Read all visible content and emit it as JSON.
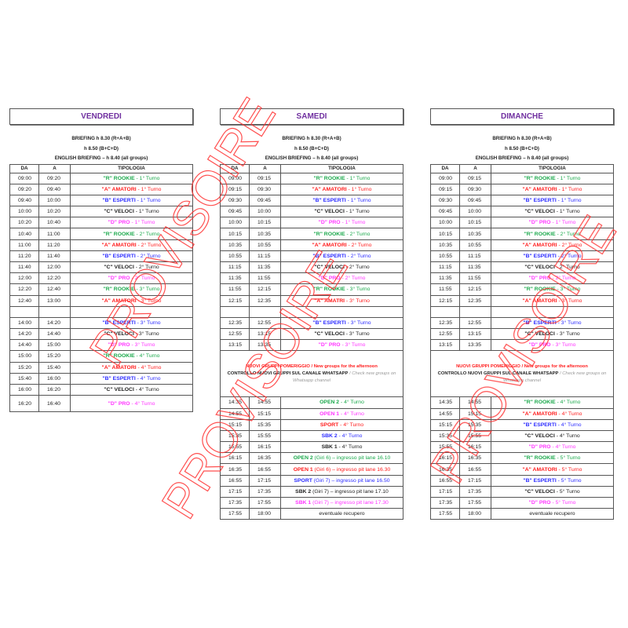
{
  "colors": {
    "g": "#19a84a",
    "r": "#ff1a1a",
    "b": "#2a2aff",
    "k": "#222222",
    "m": "#ff33ff",
    "title": "#7030a0",
    "watermark": "#ff3030"
  },
  "watermark": "PROVISOIRE",
  "headers": {
    "da": "DA",
    "a": "A",
    "tipologia": "TIPOLOGIA"
  },
  "days": [
    {
      "title": "VENDREDI",
      "briefing": [
        "BRIEFING h 8.30 (R+A+B)",
        "h 8.50 (B+C+D)",
        "ENGLISH BRIEFING – h 8.40 (all groups)"
      ],
      "rows": [
        [
          "09:00",
          "09:20",
          "\"R\" ROOKIE",
          " - 1° Turno",
          "g"
        ],
        [
          "09:20",
          "09:40",
          "\"A\" AMATORI",
          " - 1° Turno",
          "r"
        ],
        [
          "09:40",
          "10:00",
          "\"B\" ESPERTI",
          " - 1° Turno",
          "b"
        ],
        [
          "10:00",
          "10:20",
          "\"C\" VELOCI",
          " - 1° Turno",
          "k"
        ],
        [
          "10:20",
          "10:40",
          "\"D\" PRO",
          " - 1° Turno",
          "m"
        ],
        [
          "10:40",
          "11:00",
          "\"R\" ROOKIE",
          " - 2° Turno",
          "g"
        ],
        [
          "11:00",
          "11:20",
          "\"A\" AMATORI",
          " - 2° Turno",
          "r"
        ],
        [
          "11:20",
          "11:40",
          "\"B\" ESPERTI",
          " - 2° Turno",
          "b"
        ],
        [
          "11:40",
          "12:00",
          "\"C\" VELOCI",
          " - 2° Turno",
          "k"
        ],
        [
          "12:00",
          "12:20",
          "\"D\" PRO",
          " - 2° Turno",
          "m"
        ],
        [
          "12:20",
          "12:40",
          "\"R\" ROOKIE",
          " - 3° Turno",
          "g"
        ],
        [
          "12:40",
          "13:00",
          "\"A\" AMATORI",
          " - 3° Turno",
          "r"
        ],
        "gap",
        [
          "14:00",
          "14:20",
          "\"B\" ESPERTI",
          " - 3° Turno",
          "b"
        ],
        [
          "14:20",
          "14:40",
          "\"C\" VELOCI",
          " - 3° Turno",
          "k"
        ],
        [
          "14:40",
          "15:00",
          "\"D\" PRO",
          " - 3° Turno",
          "m"
        ],
        [
          "15:00",
          "15:20",
          "\"R\" ROOKIE",
          " - 4° Turno",
          "g"
        ],
        [
          "15:20",
          "15:40",
          "\"A\" AMATORI",
          " - 4° Turno",
          "r"
        ],
        [
          "15:40",
          "16:00",
          "\"B\" ESPERTI",
          " - 4° Turno",
          "b"
        ],
        [
          "16:00",
          "16:20",
          "\"C\" VELOCI",
          " - 4° Turno",
          "k"
        ],
        [
          "16:20",
          "16:40",
          "\"D\" PRO",
          " - 4° Turno",
          "m",
          "tall"
        ]
      ]
    },
    {
      "title": "SAMEDI",
      "briefing": [
        "BRIEFING h 8.30 (R+A+B)",
        "h 8.50 (B+C+D)",
        "ENGLISH BRIEFING – h 8.40 (all groups)"
      ],
      "rows": [
        [
          "09:00",
          "09:15",
          "\"R\" ROOKIE",
          " - 1° Turno",
          "g"
        ],
        [
          "09:15",
          "09:30",
          "\"A\" AMATORI",
          " - 1° Turno",
          "r"
        ],
        [
          "09:30",
          "09:45",
          "\"B\" ESPERTI",
          " - 1° Turno",
          "b"
        ],
        [
          "09:45",
          "10:00",
          "\"C\" VELOCI",
          " - 1° Turno",
          "k"
        ],
        [
          "10:00",
          "10:15",
          "\"D\" PRO",
          " - 1° Turno",
          "m"
        ],
        [
          "10:15",
          "10:35",
          "\"R\" ROOKIE",
          " - 2° Turno",
          "g"
        ],
        [
          "10:35",
          "10:55",
          "\"A\" AMATORI",
          " - 2° Turno",
          "r"
        ],
        [
          "10:55",
          "11:15",
          "\"B\" ESPERTI",
          " - 2° Turno",
          "b"
        ],
        [
          "11:15",
          "11:35",
          "\"C\" VELOCI",
          " - 2° Turno",
          "k"
        ],
        [
          "11:35",
          "11:55",
          "\"D\" PRO",
          " - 2° Turno",
          "m"
        ],
        [
          "11:55",
          "12:15",
          "\"R\" ROOKIE",
          " - 3° Turno",
          "g"
        ],
        [
          "12:15",
          "12:35",
          "\"A\" AMATRI",
          " - 3° Turno",
          "r"
        ],
        "gap",
        [
          "12:35",
          "12:55",
          "\"B\" ESPERTI",
          " - 3° Turno",
          "b"
        ],
        [
          "12:55",
          "13:15",
          "\"C\" VELOCI",
          " - 3° Turno",
          "k"
        ],
        [
          "13:15",
          "13:35",
          "\"D\" PRO",
          " - 3° Turno",
          "m"
        ],
        "note",
        [
          "14:35",
          "14:55",
          "OPEN 2",
          " - 4° Turno",
          "g"
        ],
        [
          "14:55",
          "15:15",
          "OPEN 1",
          " - 4° Turno",
          "m"
        ],
        [
          "15:15",
          "15:35",
          "SPORT",
          " - 4° Turno",
          "r"
        ],
        [
          "15:35",
          "15:55",
          "SBK 2",
          " - 4° Turno",
          "b"
        ],
        [
          "15:55",
          "16:15",
          "SBK 1",
          " - 4° Turno",
          "k"
        ],
        [
          "16:15",
          "16:35",
          "OPEN 2",
          " (Giri 6) – ingresso pit lane 16.10",
          "g"
        ],
        [
          "16:35",
          "16:55",
          "OPEN 1",
          " (Giri 6) – ingresso pit lane 16.30",
          "r"
        ],
        [
          "16:55",
          "17:15",
          "SPORT",
          " (Giri 7) – ingresso pit lane 16.50",
          "b"
        ],
        [
          "17:15",
          "17:35",
          "SBK 2",
          " (Giri 7) – ingresso pit lane 17.10",
          "k"
        ],
        [
          "17:35",
          "17:55",
          "SBK 1",
          " (Giri 7) – ingresso pit lane 17.30",
          "m"
        ],
        [
          "17:55",
          "18:00",
          "",
          "eventuale recupero",
          "k"
        ]
      ]
    },
    {
      "title": "DIMANCHE",
      "briefing": [
        "BRIEFING h 8.30 (R+A+B)",
        "h 8.50 (B+C+D)",
        "ENGLISH BRIEFING – h 8.40 (all groups)"
      ],
      "rows": [
        [
          "09:00",
          "09:15",
          "\"R\" ROOKIE",
          " - 1° Turno",
          "g"
        ],
        [
          "09:15",
          "09:30",
          "\"A\" AMATORI",
          " - 1° Turno",
          "r"
        ],
        [
          "09:30",
          "09:45",
          "\"B\" ESPERTI",
          " - 1° Turno",
          "b"
        ],
        [
          "09:45",
          "10:00",
          "\"C\" VELOCI",
          " - 1° Turno",
          "k"
        ],
        [
          "10:00",
          "10:15",
          "\"D\" PRO",
          " - 1° Turno",
          "m"
        ],
        [
          "10:15",
          "10:35",
          "\"R\" ROOKIE",
          " - 2° Turno",
          "g"
        ],
        [
          "10:35",
          "10:55",
          "\"A\" AMATORI",
          " - 2° Turno",
          "r"
        ],
        [
          "10:55",
          "11:15",
          "\"B\" ESPERTI",
          " - 2° Turno",
          "b"
        ],
        [
          "11:15",
          "11:35",
          "\"C\" VELOCI",
          " - 2° Turno",
          "k"
        ],
        [
          "11:35",
          "11:55",
          "\"D\" PRO",
          " - 2° Turno",
          "m"
        ],
        [
          "11:55",
          "12:15",
          "\"R\" ROOKIE",
          " - 3° Turno",
          "g"
        ],
        [
          "12:15",
          "12:35",
          "\"A\" AMATORI",
          " - 3° Turno",
          "r"
        ],
        "gap",
        [
          "12:35",
          "12:55",
          "\"B\" ESPERTI",
          " - 3° Turno",
          "b"
        ],
        [
          "12:55",
          "13:15",
          "\"C\" VELOCI",
          " - 3° Turno",
          "k"
        ],
        [
          "13:15",
          "13:35",
          "\"D\" PRO",
          " - 3° Turno",
          "m"
        ],
        "note",
        [
          "14:35",
          "14:55",
          "\"R\" ROOKIE",
          " - 4° Turno",
          "g"
        ],
        [
          "14:55",
          "15:15",
          "\"A\" AMATORI",
          " - 4° Turno",
          "r"
        ],
        [
          "15:15",
          "15:35",
          "\"B\" ESPERTI",
          " - 4° Turno",
          "b"
        ],
        [
          "15:35",
          "15:55",
          "\"C\" VELOCI",
          " - 4° Turno",
          "k"
        ],
        [
          "15:55",
          "16:15",
          "\"D\" PRO",
          " - 4° Turno",
          "m"
        ],
        [
          "16:15",
          "16:35",
          "\"R\" ROOKIE",
          " - 5° Turno",
          "g"
        ],
        [
          "16:35",
          "16:55",
          "\"A\" AMATORI",
          " - 5° Turno",
          "r"
        ],
        [
          "16:55",
          "17:15",
          "\"B\" ESPERTI",
          " - 5° Turno",
          "b"
        ],
        [
          "17:15",
          "17:35",
          "\"C\" VELOCI",
          " - 5° Turno",
          "k"
        ],
        [
          "17:35",
          "17:55",
          "\"D\" PRO",
          " - 5° Turno",
          "m"
        ],
        [
          "17:55",
          "18:00",
          "",
          "eventuale recupero",
          "k"
        ]
      ]
    }
  ],
  "note": {
    "line1": "NUOVI GRUPPI POMERIGGIO / New groups for the afternoon",
    "line2": "CONTROLLO NUOVI GRUPPI SUL CANALE WHATSAPP",
    "line3": " / Check new groups on Whatsapp channel"
  }
}
